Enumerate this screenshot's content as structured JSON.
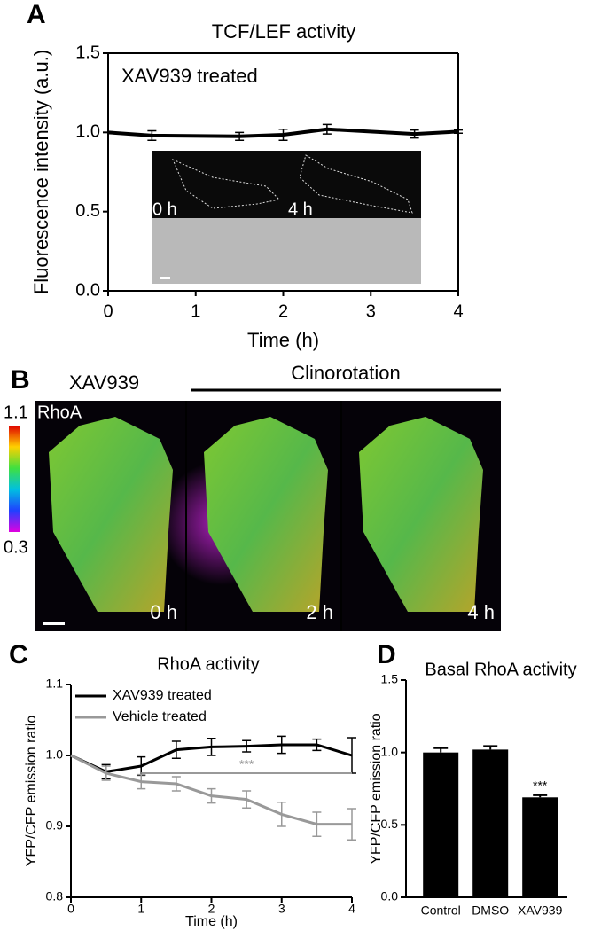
{
  "figure": {
    "panel_labels": [
      "A",
      "B",
      "C",
      "D"
    ],
    "panel_b": {
      "treatment": "XAV939",
      "condition": "Clinorotation",
      "probe": "RhoA",
      "scale_max": "1.1",
      "scale_min": "0.3",
      "times": [
        "0 h",
        "2 h",
        "4 h"
      ]
    }
  },
  "chart_data": [
    {
      "type": "line",
      "title": "TCF/LEF activity",
      "x_label": "Time (h)",
      "y_label": "Fluorescence intensity (a.u.)",
      "annotation": "XAV939 treated",
      "inset_times": [
        "0 h",
        "4 h"
      ],
      "x": [
        0,
        0.5,
        1.5,
        2,
        2.5,
        3.5,
        4
      ],
      "series": [
        {
          "color": "#000000",
          "values": [
            1.0,
            0.98,
            0.975,
            0.985,
            1.02,
            0.99,
            1.005
          ],
          "errors": [
            null,
            0.03,
            0.025,
            0.035,
            0.03,
            0.025,
            0.01
          ]
        }
      ],
      "xlim": [
        0,
        4
      ],
      "xticks": [
        0,
        1,
        2,
        3,
        4
      ],
      "ylim": [
        0,
        1.5
      ],
      "yticks": [
        {
          "value": 0,
          "label": "0.0"
        },
        0.5,
        {
          "value": 1,
          "label": "1.0"
        },
        1.5
      ]
    },
    {
      "type": "line",
      "title": "RhoA activity",
      "x_label": "Time (h)",
      "y_label": "YFP/CFP emission ratio",
      "x": [
        0,
        0.5,
        1,
        1.5,
        2,
        2.5,
        3,
        3.5,
        4
      ],
      "series": [
        {
          "name": "XAV939 treated",
          "color": "#000000",
          "values": [
            1.0,
            0.977,
            0.985,
            1.008,
            1.012,
            1.013,
            1.015,
            1.015,
            1.0
          ],
          "errors": [
            null,
            0.01,
            0.013,
            0.012,
            0.012,
            0.008,
            0.012,
            0.008,
            0.025
          ]
        },
        {
          "name": "Vehicle treated",
          "color": "#999999",
          "values": [
            1.0,
            0.975,
            0.963,
            0.96,
            0.943,
            0.938,
            0.917,
            0.903,
            0.903
          ],
          "errors": [
            null,
            0.01,
            0.01,
            0.01,
            0.01,
            0.012,
            0.017,
            0.017,
            0.022
          ]
        }
      ],
      "significance": {
        "text": "***",
        "x": [
          1,
          4
        ],
        "y": 0.975
      },
      "xlim": [
        0,
        4
      ],
      "xticks": [
        0,
        1,
        2,
        3,
        4
      ],
      "ylim": [
        0.8,
        1.1
      ],
      "yticks": [
        0.8,
        0.9,
        {
          "value": 1,
          "label": "1.0"
        },
        1.1
      ]
    },
    {
      "type": "bar",
      "title": "Basal RhoA activity",
      "y_label": "YFP/CFP emission ratio",
      "categories": [
        "Control",
        "DMSO",
        "XAV939"
      ],
      "values": [
        1.0,
        1.02,
        0.69
      ],
      "errors": [
        0.03,
        0.025,
        0.015
      ],
      "color": "#000000",
      "significance_label": "***",
      "ylim": [
        0,
        1.5
      ],
      "yticks": [
        {
          "value": 0,
          "label": "0.0"
        },
        0.5,
        {
          "value": 1,
          "label": "1.0"
        },
        1.5
      ]
    }
  ]
}
